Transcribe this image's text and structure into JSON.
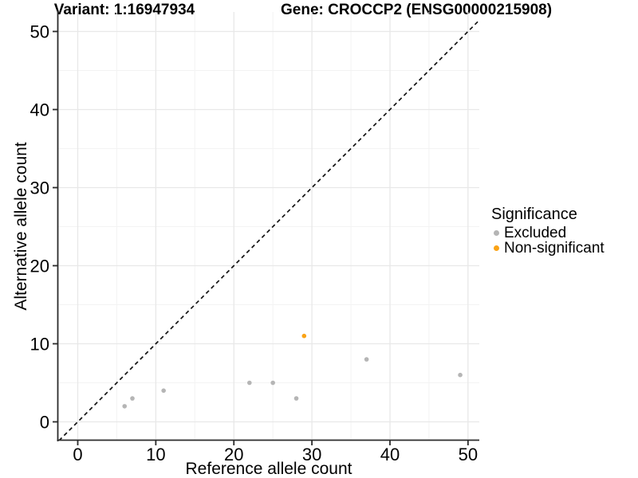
{
  "chart_data": {
    "type": "scatter",
    "titles": [
      "Variant: 1:16947934",
      "Gene: CROCCP2 (ENSG00000215908)"
    ],
    "xlabel": "Reference allele count",
    "ylabel": "Alternative allele count",
    "xlim": [
      0,
      50
    ],
    "ylim": [
      0,
      50
    ],
    "xticks": [
      0,
      10,
      20,
      30,
      40,
      50
    ],
    "yticks": [
      0,
      10,
      20,
      30,
      40,
      50
    ],
    "minor_xticks": [
      5,
      15,
      25,
      35,
      45
    ],
    "minor_yticks": [
      5,
      15,
      25,
      35,
      45
    ],
    "grid": true,
    "identity_line": {
      "style": "dashed",
      "slope": 1,
      "intercept": 0,
      "color": "#111111"
    },
    "legend": {
      "title": "Significance",
      "position": "right",
      "entries": [
        {
          "label": "Excluded",
          "color": "#b5b5b5"
        },
        {
          "label": "Non-significant",
          "color": "#faa316"
        }
      ]
    },
    "series": [
      {
        "name": "Excluded",
        "color": "#b5b5b5",
        "points": [
          [
            6,
            2
          ],
          [
            7,
            3
          ],
          [
            11,
            4
          ],
          [
            22,
            5
          ],
          [
            25,
            5
          ],
          [
            28,
            3
          ],
          [
            37,
            8
          ],
          [
            49,
            6
          ]
        ]
      },
      {
        "name": "Non-significant",
        "color": "#faa316",
        "points": [
          [
            29,
            11
          ]
        ]
      }
    ]
  },
  "colors": {
    "grid_major": "#e8e8e8",
    "grid_minor": "#f3f3f3",
    "axis": "#2b2b2b",
    "text": "#000000"
  }
}
